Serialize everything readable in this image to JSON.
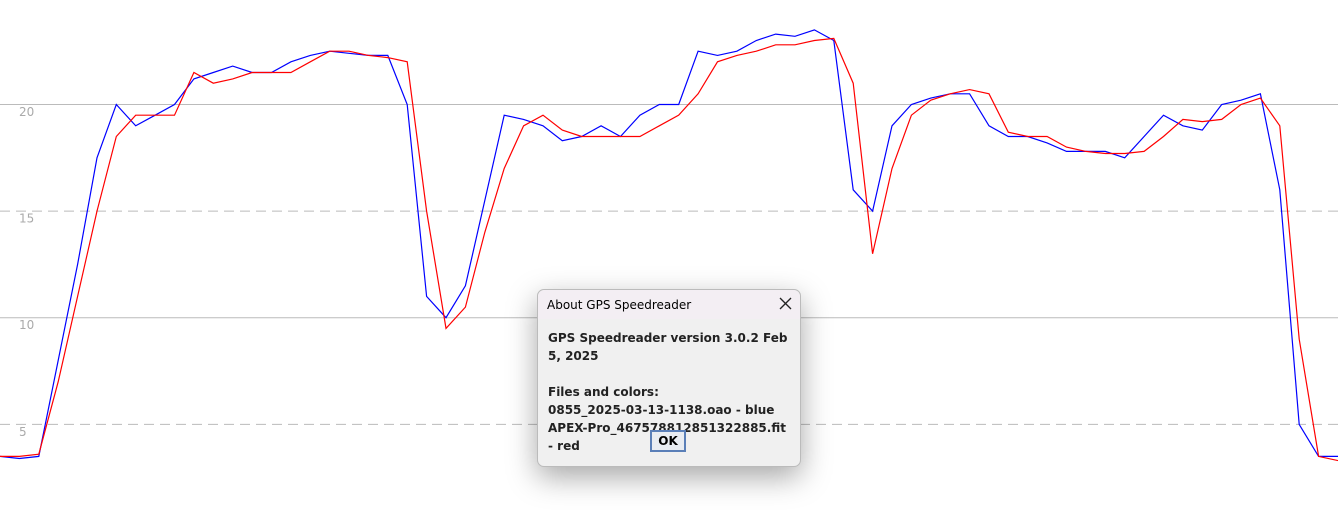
{
  "chart_data": {
    "type": "line",
    "categories": [
      null,
      null,
      null,
      null,
      null,
      null,
      null,
      null,
      null,
      null,
      null,
      null,
      null,
      null,
      null,
      null,
      null,
      null,
      null,
      null,
      null,
      null,
      null,
      null,
      null,
      null,
      null,
      null,
      null,
      null,
      null,
      null,
      null,
      null,
      null,
      null,
      null,
      null,
      null,
      null,
      null,
      null,
      null,
      null,
      null,
      null,
      null,
      null,
      null,
      null,
      null,
      null,
      null,
      null,
      null,
      null,
      null,
      null,
      null,
      null,
      null,
      null,
      null,
      null,
      null,
      null,
      null,
      null,
      null,
      null
    ],
    "series": [
      {
        "color": "#0000ff",
        "values": [
          3.5,
          3.4,
          3.5,
          8,
          12.5,
          17.5,
          20,
          19,
          19.5,
          20,
          21.2,
          21.5,
          21.8,
          21.5,
          21.5,
          22,
          22.3,
          22.5,
          22.4,
          22.3,
          22.3,
          20,
          11,
          10,
          11.5,
          15.5,
          19.5,
          19.3,
          19,
          18.3,
          18.5,
          19,
          18.5,
          19.5,
          20,
          20,
          22.5,
          22.3,
          22.5,
          23,
          23.3,
          23.2,
          23.5,
          23,
          16,
          15,
          19,
          20,
          20.3,
          20.5,
          20.5,
          19,
          18.5,
          18.5,
          18.2,
          17.8,
          17.8,
          17.8,
          17.5,
          18.5,
          19.5,
          19,
          18.8,
          20,
          20.2,
          20.5,
          16,
          5,
          3.5,
          3.5
        ]
      },
      {
        "color": "#ff0000",
        "values": [
          3.5,
          3.5,
          3.6,
          7,
          11,
          15,
          18.5,
          19.5,
          19.5,
          19.5,
          21.5,
          21,
          21.2,
          21.5,
          21.5,
          21.5,
          22,
          22.5,
          22.5,
          22.3,
          22.2,
          22,
          15,
          9.5,
          10.5,
          14,
          17,
          19,
          19.5,
          18.8,
          18.5,
          18.5,
          18.5,
          18.5,
          19,
          19.5,
          20.5,
          22,
          22.3,
          22.5,
          22.8,
          22.8,
          23,
          23.1,
          21,
          13,
          17,
          19.5,
          20.2,
          20.5,
          20.7,
          20.5,
          18.7,
          18.5,
          18.5,
          18,
          17.8,
          17.7,
          17.7,
          17.8,
          18.5,
          19.3,
          19.2,
          19.3,
          20,
          20.3,
          19,
          9,
          3.5,
          3.3
        ]
      }
    ],
    "ylim": [
      0,
      24.9
    ],
    "yticks": [
      5,
      10,
      15,
      20
    ],
    "grid": true
  },
  "dialog": {
    "title": "About GPS Speedreader",
    "heading": "GPS Speedreader version 3.0.2 Feb 5, 2025",
    "files_heading": "Files and colors:",
    "files": [
      "0855_2025-03-13-1138.oao - blue",
      "APEX-Pro_467578812851322885.fit - red"
    ],
    "ok_button": "OK"
  }
}
